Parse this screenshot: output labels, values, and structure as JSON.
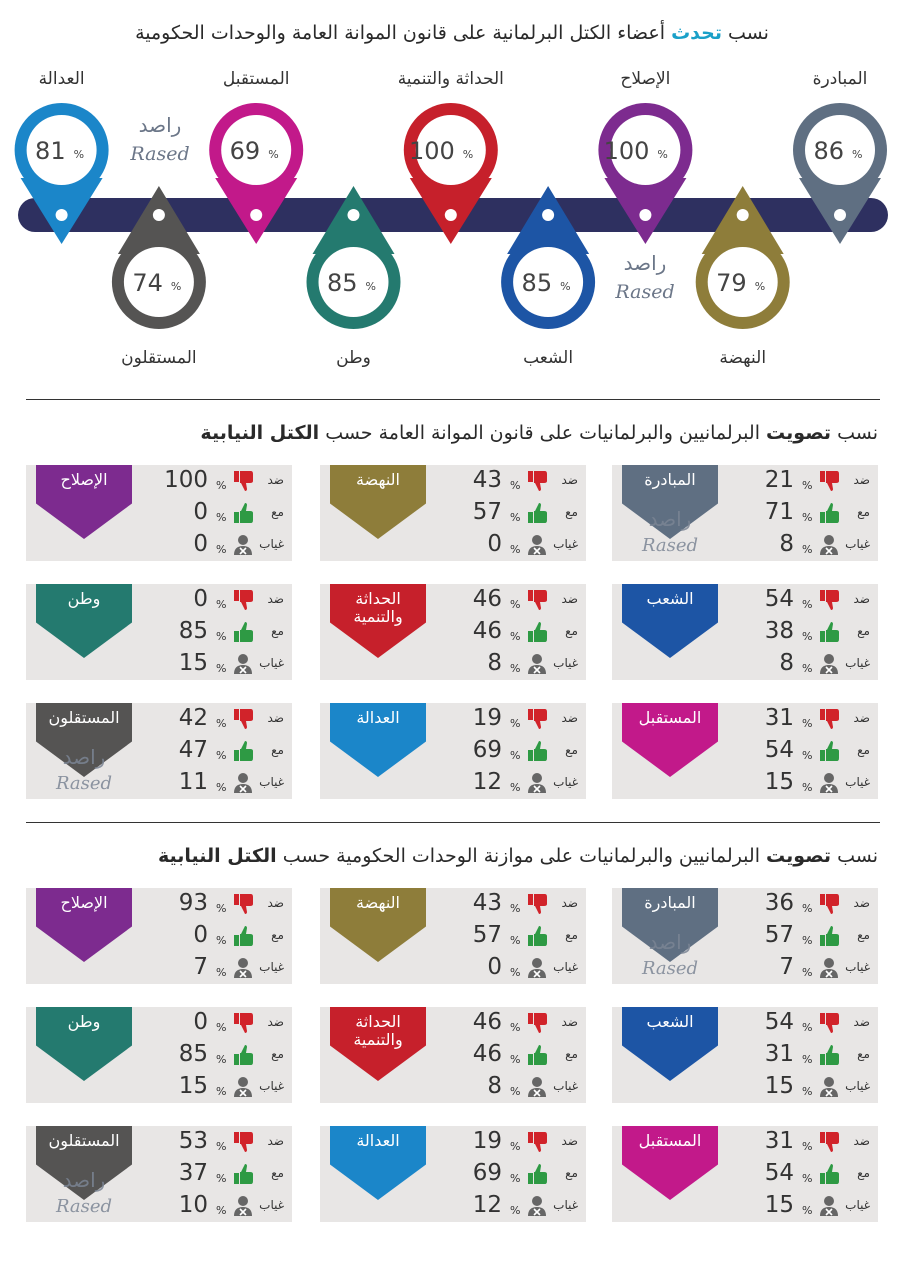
{
  "watermark": {
    "arabic": "راصد",
    "latin": "Rased"
  },
  "unit": "%",
  "vote_labels": {
    "against": "ضد",
    "for": "مع",
    "absent": "غياب"
  },
  "speech": {
    "title": [
      {
        "text": "نسب",
        "highlight": false
      },
      {
        "text": "تحدث",
        "highlight": true
      },
      {
        "text": "أعضاء الكتل البرلمانية على قانون الموانة العامة والوحدات الحكومية",
        "highlight": false
      }
    ],
    "blocs": [
      {
        "name": "المبادرة",
        "value": 86,
        "color": "#5f6f82"
      },
      {
        "name": "النهضة",
        "value": 79,
        "color": "#8e7d3a"
      },
      {
        "name": "الإصلاح",
        "value": 100,
        "color": "#7d2b8f"
      },
      {
        "name": "الشعب",
        "value": 85,
        "color": "#1d55a5"
      },
      {
        "name": "الحداثة والتنمية",
        "value": 100,
        "color": "#c6202b"
      },
      {
        "name": "وطن",
        "value": 85,
        "color": "#247a6f"
      },
      {
        "name": "المستقبل",
        "value": 69,
        "color": "#c2198a"
      },
      {
        "name": "المستقلون",
        "value": 74,
        "color": "#555453"
      },
      {
        "name": "العدالة",
        "value": 81,
        "color": "#1b86c9"
      }
    ]
  },
  "budget_law_votes": {
    "title": [
      {
        "text": "نسب",
        "bold": false
      },
      {
        "text": "تصويت",
        "bold": true
      },
      {
        "text": "البرلمانيين والبرلمانيات على قانون الموانة العامة حسب",
        "bold": false
      },
      {
        "text": "الكتل النيابية",
        "bold": true
      }
    ],
    "blocs": [
      {
        "name": "المبادرة",
        "against": 21,
        "for": 71,
        "absent": 8,
        "color": "#5f6f82"
      },
      {
        "name": "النهضة",
        "against": 43,
        "for": 57,
        "absent": 0,
        "color": "#8e7d3a"
      },
      {
        "name": "الإصلاح",
        "against": 100,
        "for": 0,
        "absent": 0,
        "color": "#7d2b8f"
      },
      {
        "name": "الشعب",
        "against": 54,
        "for": 38,
        "absent": 8,
        "color": "#1d55a5"
      },
      {
        "name": "الحداثة والتنمية",
        "against": 46,
        "for": 46,
        "absent": 8,
        "color": "#c6202b"
      },
      {
        "name": "وطن",
        "against": 0,
        "for": 85,
        "absent": 15,
        "color": "#247a6f"
      },
      {
        "name": "المستقبل",
        "against": 31,
        "for": 54,
        "absent": 15,
        "color": "#c2198a"
      },
      {
        "name": "العدالة",
        "against": 19,
        "for": 69,
        "absent": 12,
        "color": "#1b86c9"
      },
      {
        "name": "المستقلون",
        "against": 42,
        "for": 47,
        "absent": 11,
        "color": "#555453"
      }
    ]
  },
  "units_budget_votes": {
    "title": [
      {
        "text": "نسب",
        "bold": false
      },
      {
        "text": "تصويت",
        "bold": true
      },
      {
        "text": "البرلمانيين والبرلمانيات على موازنة الوحدات الحكومية حسب",
        "bold": false
      },
      {
        "text": "الكتل النيابية",
        "bold": true
      }
    ],
    "blocs": [
      {
        "name": "المبادرة",
        "against": 36,
        "for": 57,
        "absent": 7,
        "color": "#5f6f82"
      },
      {
        "name": "النهضة",
        "against": 43,
        "for": 57,
        "absent": 0,
        "color": "#8e7d3a"
      },
      {
        "name": "الإصلاح",
        "against": 93,
        "for": 0,
        "absent": 7,
        "color": "#7d2b8f"
      },
      {
        "name": "الشعب",
        "against": 54,
        "for": 31,
        "absent": 15,
        "color": "#1d55a5"
      },
      {
        "name": "الحداثة والتنمية",
        "against": 46,
        "for": 46,
        "absent": 8,
        "color": "#c6202b"
      },
      {
        "name": "وطن",
        "against": 0,
        "for": 85,
        "absent": 15,
        "color": "#247a6f"
      },
      {
        "name": "المستقبل",
        "against": 31,
        "for": 54,
        "absent": 15,
        "color": "#c2198a"
      },
      {
        "name": "العدالة",
        "against": 19,
        "for": 69,
        "absent": 12,
        "color": "#1b86c9"
      },
      {
        "name": "المستقلون",
        "against": 53,
        "for": 37,
        "absent": 10,
        "color": "#555453"
      }
    ]
  }
}
